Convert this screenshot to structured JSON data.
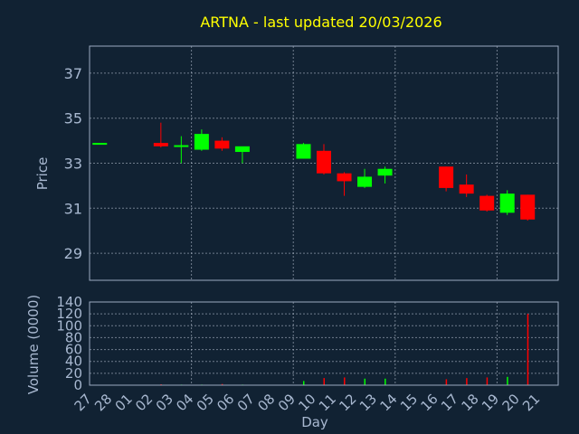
{
  "title": "ARTNA - last updated 20/03/2026",
  "colors": {
    "background": "#112233",
    "up": "#00ff00",
    "down": "#ff0000",
    "text": "#a8b8d0",
    "title": "#ffff00"
  },
  "chart_data": [
    {
      "type": "candlestick",
      "ylabel": "Price",
      "ylim": [
        27.8,
        38.2
      ],
      "yticks": [
        "29",
        "31",
        "33",
        "35",
        "37"
      ],
      "grid": true,
      "candles": [
        {
          "day": "27",
          "open": 33.9,
          "high": 33.9,
          "low": 33.9,
          "close": 33.9
        },
        {
          "day": "02",
          "open": 33.9,
          "high": 34.8,
          "low": 33.7,
          "close": 33.75
        },
        {
          "day": "03",
          "open": 33.75,
          "high": 34.2,
          "low": 33.0,
          "close": 33.8
        },
        {
          "day": "04",
          "open": 33.6,
          "high": 34.5,
          "low": 33.55,
          "close": 34.3
        },
        {
          "day": "05",
          "open": 34.0,
          "high": 34.15,
          "low": 33.55,
          "close": 33.65
        },
        {
          "day": "06",
          "open": 33.5,
          "high": 33.7,
          "low": 33.0,
          "close": 33.75
        },
        {
          "day": "09",
          "open": 33.2,
          "high": 33.9,
          "low": 33.2,
          "close": 33.85
        },
        {
          "day": "10",
          "open": 33.55,
          "high": 33.85,
          "low": 32.5,
          "close": 32.55
        },
        {
          "day": "11",
          "open": 32.55,
          "high": 32.6,
          "low": 31.55,
          "close": 32.2
        },
        {
          "day": "12",
          "open": 31.95,
          "high": 32.75,
          "low": 31.9,
          "close": 32.4
        },
        {
          "day": "13",
          "open": 32.45,
          "high": 32.85,
          "low": 32.1,
          "close": 32.75
        },
        {
          "day": "16",
          "open": 32.85,
          "high": 32.85,
          "low": 31.75,
          "close": 31.9
        },
        {
          "day": "17",
          "open": 32.05,
          "high": 32.5,
          "low": 31.5,
          "close": 31.65
        },
        {
          "day": "18",
          "open": 31.55,
          "high": 31.6,
          "low": 30.85,
          "close": 30.9
        },
        {
          "day": "19",
          "open": 30.8,
          "high": 31.8,
          "low": 30.7,
          "close": 31.65
        },
        {
          "day": "20",
          "open": 31.6,
          "high": 31.6,
          "low": 30.45,
          "close": 30.5
        }
      ]
    },
    {
      "type": "bar",
      "ylabel": "Volume (0000)",
      "xlabel": "Day",
      "ylim": [
        0,
        140
      ],
      "yticks": [
        "0",
        "20",
        "40",
        "60",
        "80",
        "100",
        "120",
        "140"
      ],
      "grid": true,
      "x_ticks": [
        "27",
        "28",
        "01",
        "02",
        "03",
        "04",
        "05",
        "06",
        "07",
        "08",
        "09",
        "10",
        "11",
        "12",
        "13",
        "14",
        "15",
        "16",
        "17",
        "18",
        "19",
        "20",
        "21"
      ],
      "volumes": [
        {
          "day": "27",
          "value": 0.5
        },
        {
          "day": "02",
          "value": 1.5
        },
        {
          "day": "03",
          "value": 1
        },
        {
          "day": "04",
          "value": 1
        },
        {
          "day": "05",
          "value": 2
        },
        {
          "day": "06",
          "value": 1
        },
        {
          "day": "09",
          "value": 7
        },
        {
          "day": "10",
          "value": 12
        },
        {
          "day": "11",
          "value": 13
        },
        {
          "day": "12",
          "value": 11
        },
        {
          "day": "13",
          "value": 11
        },
        {
          "day": "16",
          "value": 10
        },
        {
          "day": "17",
          "value": 12
        },
        {
          "day": "18",
          "value": 13
        },
        {
          "day": "19",
          "value": 14
        },
        {
          "day": "20",
          "value": 120
        }
      ]
    }
  ]
}
